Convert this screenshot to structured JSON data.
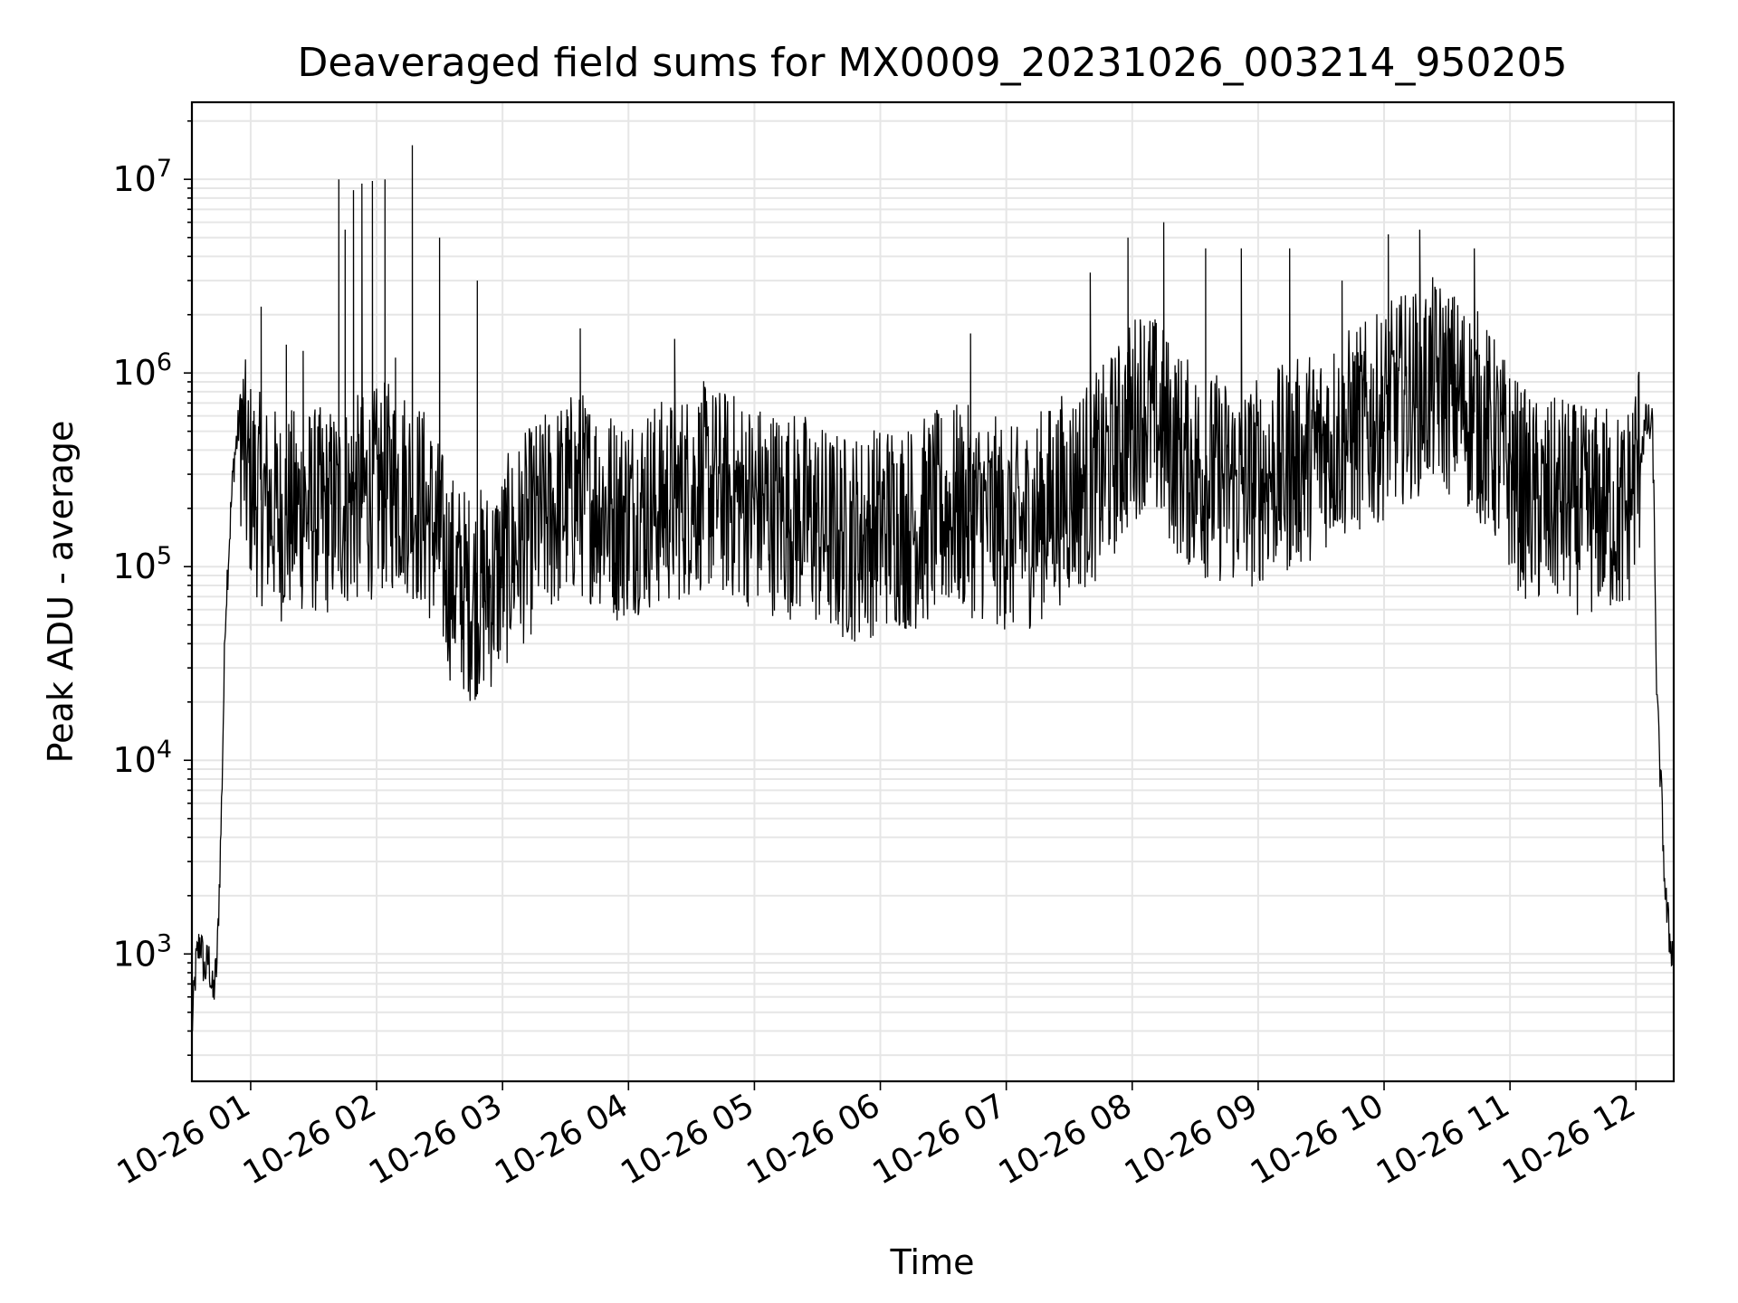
{
  "chart_data": {
    "type": "line",
    "title": "Deaveraged field sums for MX0009_20231026_003214_950205",
    "xlabel": "Time",
    "ylabel": "Peak ADU - average",
    "yscale": "log",
    "ylim": [
      220,
      25000000
    ],
    "xlim": [
      "2023-10-26 00:32",
      "2023-10-26 12:18"
    ],
    "grid": true,
    "grid_minor": true,
    "line_color": "#000000",
    "x_ticks": [
      "10-26 01",
      "10-26 02",
      "10-26 03",
      "10-26 04",
      "10-26 05",
      "10-26 06",
      "10-26 07",
      "10-26 08",
      "10-26 09",
      "10-26 10",
      "10-26 11",
      "10-26 12"
    ],
    "y_ticks": [
      {
        "value": 1000,
        "base": "10",
        "exp": "3"
      },
      {
        "value": 10000,
        "base": "10",
        "exp": "4"
      },
      {
        "value": 100000,
        "base": "10",
        "exp": "5"
      },
      {
        "value": 1000000,
        "base": "10",
        "exp": "6"
      },
      {
        "value": 10000000,
        "base": "10",
        "exp": "7"
      }
    ],
    "series": [
      {
        "x": [
          "2023-10-26 00:32",
          "2023-10-26 00:34",
          "2023-10-26 00:36",
          "2023-10-26 00:38",
          "2023-10-26 00:40",
          "2023-10-26 00:42",
          "2023-10-26 00:44",
          "2023-10-26 00:46",
          "2023-10-26 00:48",
          "2023-10-26 00:50",
          "2023-10-26 00:52",
          "2023-10-26 00:55",
          "2023-10-26 00:58",
          "2023-10-26 01:05",
          "2023-10-26 01:15",
          "2023-10-26 01:25",
          "2023-10-26 01:35",
          "2023-10-26 01:45",
          "2023-10-26 01:55",
          "2023-10-26 02:05",
          "2023-10-26 02:15",
          "2023-10-26 02:25",
          "2023-10-26 02:35",
          "2023-10-26 02:45",
          "2023-10-26 02:55",
          "2023-10-26 03:05",
          "2023-10-26 03:15",
          "2023-10-26 03:25",
          "2023-10-26 03:35",
          "2023-10-26 03:45",
          "2023-10-26 03:55",
          "2023-10-26 04:05",
          "2023-10-26 04:15",
          "2023-10-26 04:25",
          "2023-10-26 04:35",
          "2023-10-26 04:45",
          "2023-10-26 04:55",
          "2023-10-26 05:05",
          "2023-10-26 05:15",
          "2023-10-26 05:25",
          "2023-10-26 05:35",
          "2023-10-26 05:45",
          "2023-10-26 05:55",
          "2023-10-26 06:05",
          "2023-10-26 06:15",
          "2023-10-26 06:25",
          "2023-10-26 06:35",
          "2023-10-26 06:45",
          "2023-10-26 06:55",
          "2023-10-26 07:05",
          "2023-10-26 07:15",
          "2023-10-26 07:25",
          "2023-10-26 07:35",
          "2023-10-26 07:45",
          "2023-10-26 07:55",
          "2023-10-26 08:05",
          "2023-10-26 08:15",
          "2023-10-26 08:25",
          "2023-10-26 08:35",
          "2023-10-26 08:45",
          "2023-10-26 08:55",
          "2023-10-26 09:05",
          "2023-10-26 09:15",
          "2023-10-26 09:25",
          "2023-10-26 09:35",
          "2023-10-26 09:45",
          "2023-10-26 09:55",
          "2023-10-26 10:05",
          "2023-10-26 10:15",
          "2023-10-26 10:25",
          "2023-10-26 10:35",
          "2023-10-26 10:45",
          "2023-10-26 10:55",
          "2023-10-26 11:05",
          "2023-10-26 11:15",
          "2023-10-26 11:25",
          "2023-10-26 11:35",
          "2023-10-26 11:45",
          "2023-10-26 11:55",
          "2023-10-26 12:01",
          "2023-10-26 12:05",
          "2023-10-26 12:08",
          "2023-10-26 12:10",
          "2023-10-26 12:12",
          "2023-10-26 12:14",
          "2023-10-26 12:16",
          "2023-10-26 12:18"
        ],
        "y": [
          400,
          900,
          1200,
          800,
          950,
          600,
          900,
          5000,
          60000,
          150000,
          350000,
          600000,
          300000,
          220000,
          180000,
          200000,
          190000,
          210000,
          230000,
          260000,
          250000,
          180000,
          90000,
          70000,
          80000,
          120000,
          160000,
          200000,
          240000,
          220000,
          180000,
          200000,
          210000,
          230000,
          260000,
          240000,
          220000,
          200000,
          190000,
          180000,
          150000,
          140000,
          150000,
          170000,
          160000,
          180000,
          200000,
          190000,
          170000,
          150000,
          180000,
          220000,
          260000,
          300000,
          450000,
          700000,
          500000,
          350000,
          300000,
          280000,
          260000,
          300000,
          320000,
          380000,
          450000,
          500000,
          550000,
          700000,
          800000,
          900000,
          750000,
          600000,
          400000,
          250000,
          200000,
          220000,
          190000,
          200000,
          180000,
          350000,
          550000,
          500000,
          20000,
          7000,
          2000,
          1200,
          1000
        ],
        "spikes": [
          {
            "x": "2023-10-26 01:05",
            "y": 2200000
          },
          {
            "x": "2023-10-26 01:17",
            "y": 1400000
          },
          {
            "x": "2023-10-26 01:25",
            "y": 1300000
          },
          {
            "x": "2023-10-26 01:42",
            "y": 10000000
          },
          {
            "x": "2023-10-26 01:45",
            "y": 5500000
          },
          {
            "x": "2023-10-26 01:49",
            "y": 8800000
          },
          {
            "x": "2023-10-26 01:53",
            "y": 9500000
          },
          {
            "x": "2023-10-26 01:58",
            "y": 9800000
          },
          {
            "x": "2023-10-26 02:04",
            "y": 10000000
          },
          {
            "x": "2023-10-26 02:09",
            "y": 1200000
          },
          {
            "x": "2023-10-26 02:17",
            "y": 15000000
          },
          {
            "x": "2023-10-26 02:30",
            "y": 5000000
          },
          {
            "x": "2023-10-26 02:48",
            "y": 3000000
          },
          {
            "x": "2023-10-26 03:37",
            "y": 1700000
          },
          {
            "x": "2023-10-26 04:22",
            "y": 1500000
          },
          {
            "x": "2023-10-26 06:43",
            "y": 1600000
          },
          {
            "x": "2023-10-26 07:40",
            "y": 3300000
          },
          {
            "x": "2023-10-26 07:58",
            "y": 5000000
          },
          {
            "x": "2023-10-26 08:15",
            "y": 6000000
          },
          {
            "x": "2023-10-26 08:35",
            "y": 4400000
          },
          {
            "x": "2023-10-26 08:52",
            "y": 4400000
          },
          {
            "x": "2023-10-26 09:15",
            "y": 4400000
          },
          {
            "x": "2023-10-26 09:40",
            "y": 3000000
          },
          {
            "x": "2023-10-26 10:02",
            "y": 5200000
          },
          {
            "x": "2023-10-26 10:17",
            "y": 5500000
          },
          {
            "x": "2023-10-26 10:43",
            "y": 4400000
          }
        ]
      }
    ]
  }
}
